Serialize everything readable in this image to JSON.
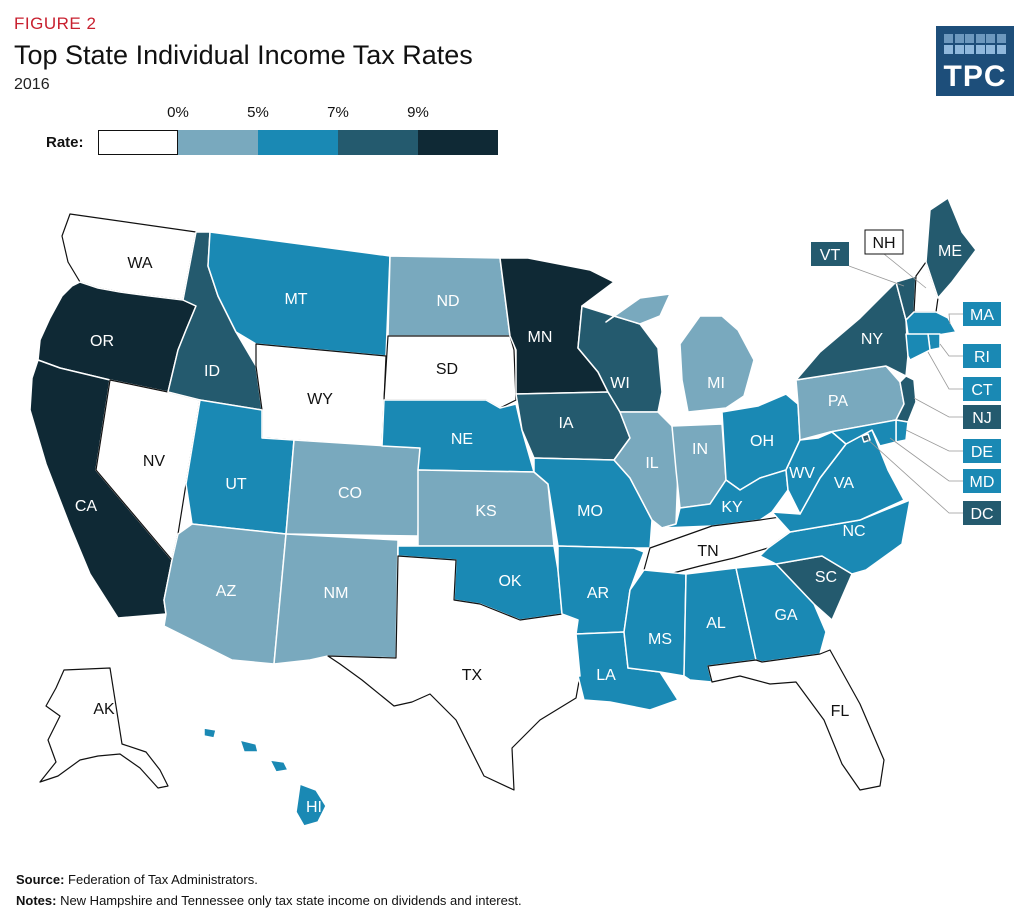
{
  "header": {
    "figure_label": "FIGURE 2",
    "title": "Top State Individual Income Tax Rates",
    "subtitle": "2016",
    "logo_text": "TPC"
  },
  "legend": {
    "title": "Rate:",
    "ticks": [
      "0%",
      "5%",
      "7%",
      "9%"
    ],
    "bins": [
      {
        "id": "none",
        "color": "#ffffff"
      },
      {
        "id": "0-5",
        "color": "#79a9be"
      },
      {
        "id": "5-7",
        "color": "#1a89b4"
      },
      {
        "id": "7-9",
        "color": "#245a6e"
      },
      {
        "id": "9+",
        "color": "#0f2935"
      }
    ]
  },
  "states": [
    {
      "abbr": "WA",
      "bin": "none"
    },
    {
      "abbr": "OR",
      "bin": "9+"
    },
    {
      "abbr": "CA",
      "bin": "9+"
    },
    {
      "abbr": "NV",
      "bin": "none"
    },
    {
      "abbr": "ID",
      "bin": "7-9"
    },
    {
      "abbr": "MT",
      "bin": "5-7"
    },
    {
      "abbr": "WY",
      "bin": "none"
    },
    {
      "abbr": "UT",
      "bin": "5-7"
    },
    {
      "abbr": "AZ",
      "bin": "0-5"
    },
    {
      "abbr": "CO",
      "bin": "0-5"
    },
    {
      "abbr": "NM",
      "bin": "0-5"
    },
    {
      "abbr": "ND",
      "bin": "0-5"
    },
    {
      "abbr": "SD",
      "bin": "none"
    },
    {
      "abbr": "NE",
      "bin": "5-7"
    },
    {
      "abbr": "KS",
      "bin": "0-5"
    },
    {
      "abbr": "OK",
      "bin": "5-7"
    },
    {
      "abbr": "TX",
      "bin": "none"
    },
    {
      "abbr": "MN",
      "bin": "9+"
    },
    {
      "abbr": "IA",
      "bin": "7-9"
    },
    {
      "abbr": "MO",
      "bin": "5-7"
    },
    {
      "abbr": "AR",
      "bin": "5-7"
    },
    {
      "abbr": "LA",
      "bin": "5-7"
    },
    {
      "abbr": "WI",
      "bin": "7-9"
    },
    {
      "abbr": "IL",
      "bin": "0-5"
    },
    {
      "abbr": "MI",
      "bin": "0-5"
    },
    {
      "abbr": "IN",
      "bin": "0-5"
    },
    {
      "abbr": "OH",
      "bin": "5-7"
    },
    {
      "abbr": "KY",
      "bin": "5-7"
    },
    {
      "abbr": "TN",
      "bin": "none"
    },
    {
      "abbr": "MS",
      "bin": "5-7"
    },
    {
      "abbr": "AL",
      "bin": "5-7"
    },
    {
      "abbr": "GA",
      "bin": "5-7"
    },
    {
      "abbr": "FL",
      "bin": "none"
    },
    {
      "abbr": "SC",
      "bin": "7-9"
    },
    {
      "abbr": "NC",
      "bin": "5-7"
    },
    {
      "abbr": "VA",
      "bin": "5-7"
    },
    {
      "abbr": "WV",
      "bin": "5-7"
    },
    {
      "abbr": "PA",
      "bin": "0-5"
    },
    {
      "abbr": "NY",
      "bin": "7-9"
    },
    {
      "abbr": "VT",
      "bin": "7-9"
    },
    {
      "abbr": "NH",
      "bin": "none"
    },
    {
      "abbr": "ME",
      "bin": "7-9"
    },
    {
      "abbr": "MA",
      "bin": "5-7"
    },
    {
      "abbr": "RI",
      "bin": "5-7"
    },
    {
      "abbr": "CT",
      "bin": "5-7"
    },
    {
      "abbr": "NJ",
      "bin": "7-9"
    },
    {
      "abbr": "DE",
      "bin": "5-7"
    },
    {
      "abbr": "MD",
      "bin": "5-7"
    },
    {
      "abbr": "DC",
      "bin": "7-9"
    },
    {
      "abbr": "AK",
      "bin": "none"
    },
    {
      "abbr": "HI",
      "bin": "5-7"
    }
  ],
  "footer": {
    "source_label": "Source:",
    "source_text": " Federation of Tax Administrators.",
    "notes_label": "Notes:",
    "notes_text": " New Hampshire and Tennessee only tax state income on dividends and interest."
  }
}
